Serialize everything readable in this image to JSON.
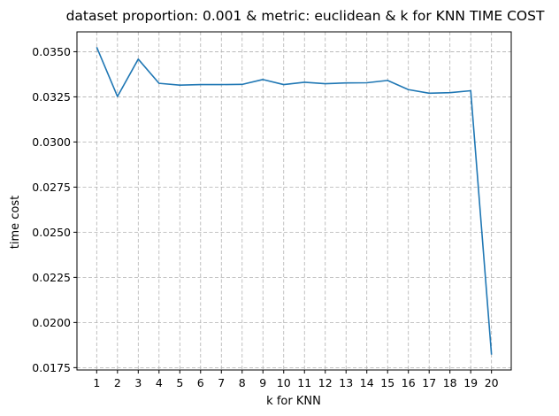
{
  "chart_data": {
    "type": "line",
    "title": "dataset proportion: 0.001 & metric: euclidean & k for KNN TIME COST",
    "xlabel": "k for KNN",
    "ylabel": "time cost",
    "x": [
      1,
      2,
      3,
      4,
      5,
      6,
      7,
      8,
      9,
      10,
      11,
      12,
      13,
      14,
      15,
      16,
      17,
      18,
      19,
      20
    ],
    "x_tick_labels": [
      "1",
      "2",
      "3",
      "4",
      "5",
      "6",
      "7",
      "8",
      "9",
      "10",
      "11",
      "12",
      "13",
      "14",
      "15",
      "16",
      "17",
      "18",
      "19",
      "20"
    ],
    "series": [
      {
        "values": [
          0.03525,
          0.03252,
          0.03459,
          0.03325,
          0.03315,
          0.03318,
          0.03318,
          0.03319,
          0.03346,
          0.03318,
          0.03331,
          0.03323,
          0.03327,
          0.03328,
          0.03341,
          0.0329,
          0.0327,
          0.03273,
          0.03284,
          0.01822
        ],
        "color": "#1f77b4"
      }
    ],
    "y_ticks": [
      0.0175,
      0.02,
      0.0225,
      0.025,
      0.0275,
      0.03,
      0.0325,
      0.035
    ],
    "y_tick_labels": [
      "0.0175",
      "0.0200",
      "0.0225",
      "0.0250",
      "0.0275",
      "0.0300",
      "0.0325",
      "0.0350"
    ],
    "xlim": [
      0.05,
      20.95
    ],
    "ylim": [
      0.01737,
      0.0361
    ],
    "grid": true,
    "legend": "none"
  }
}
